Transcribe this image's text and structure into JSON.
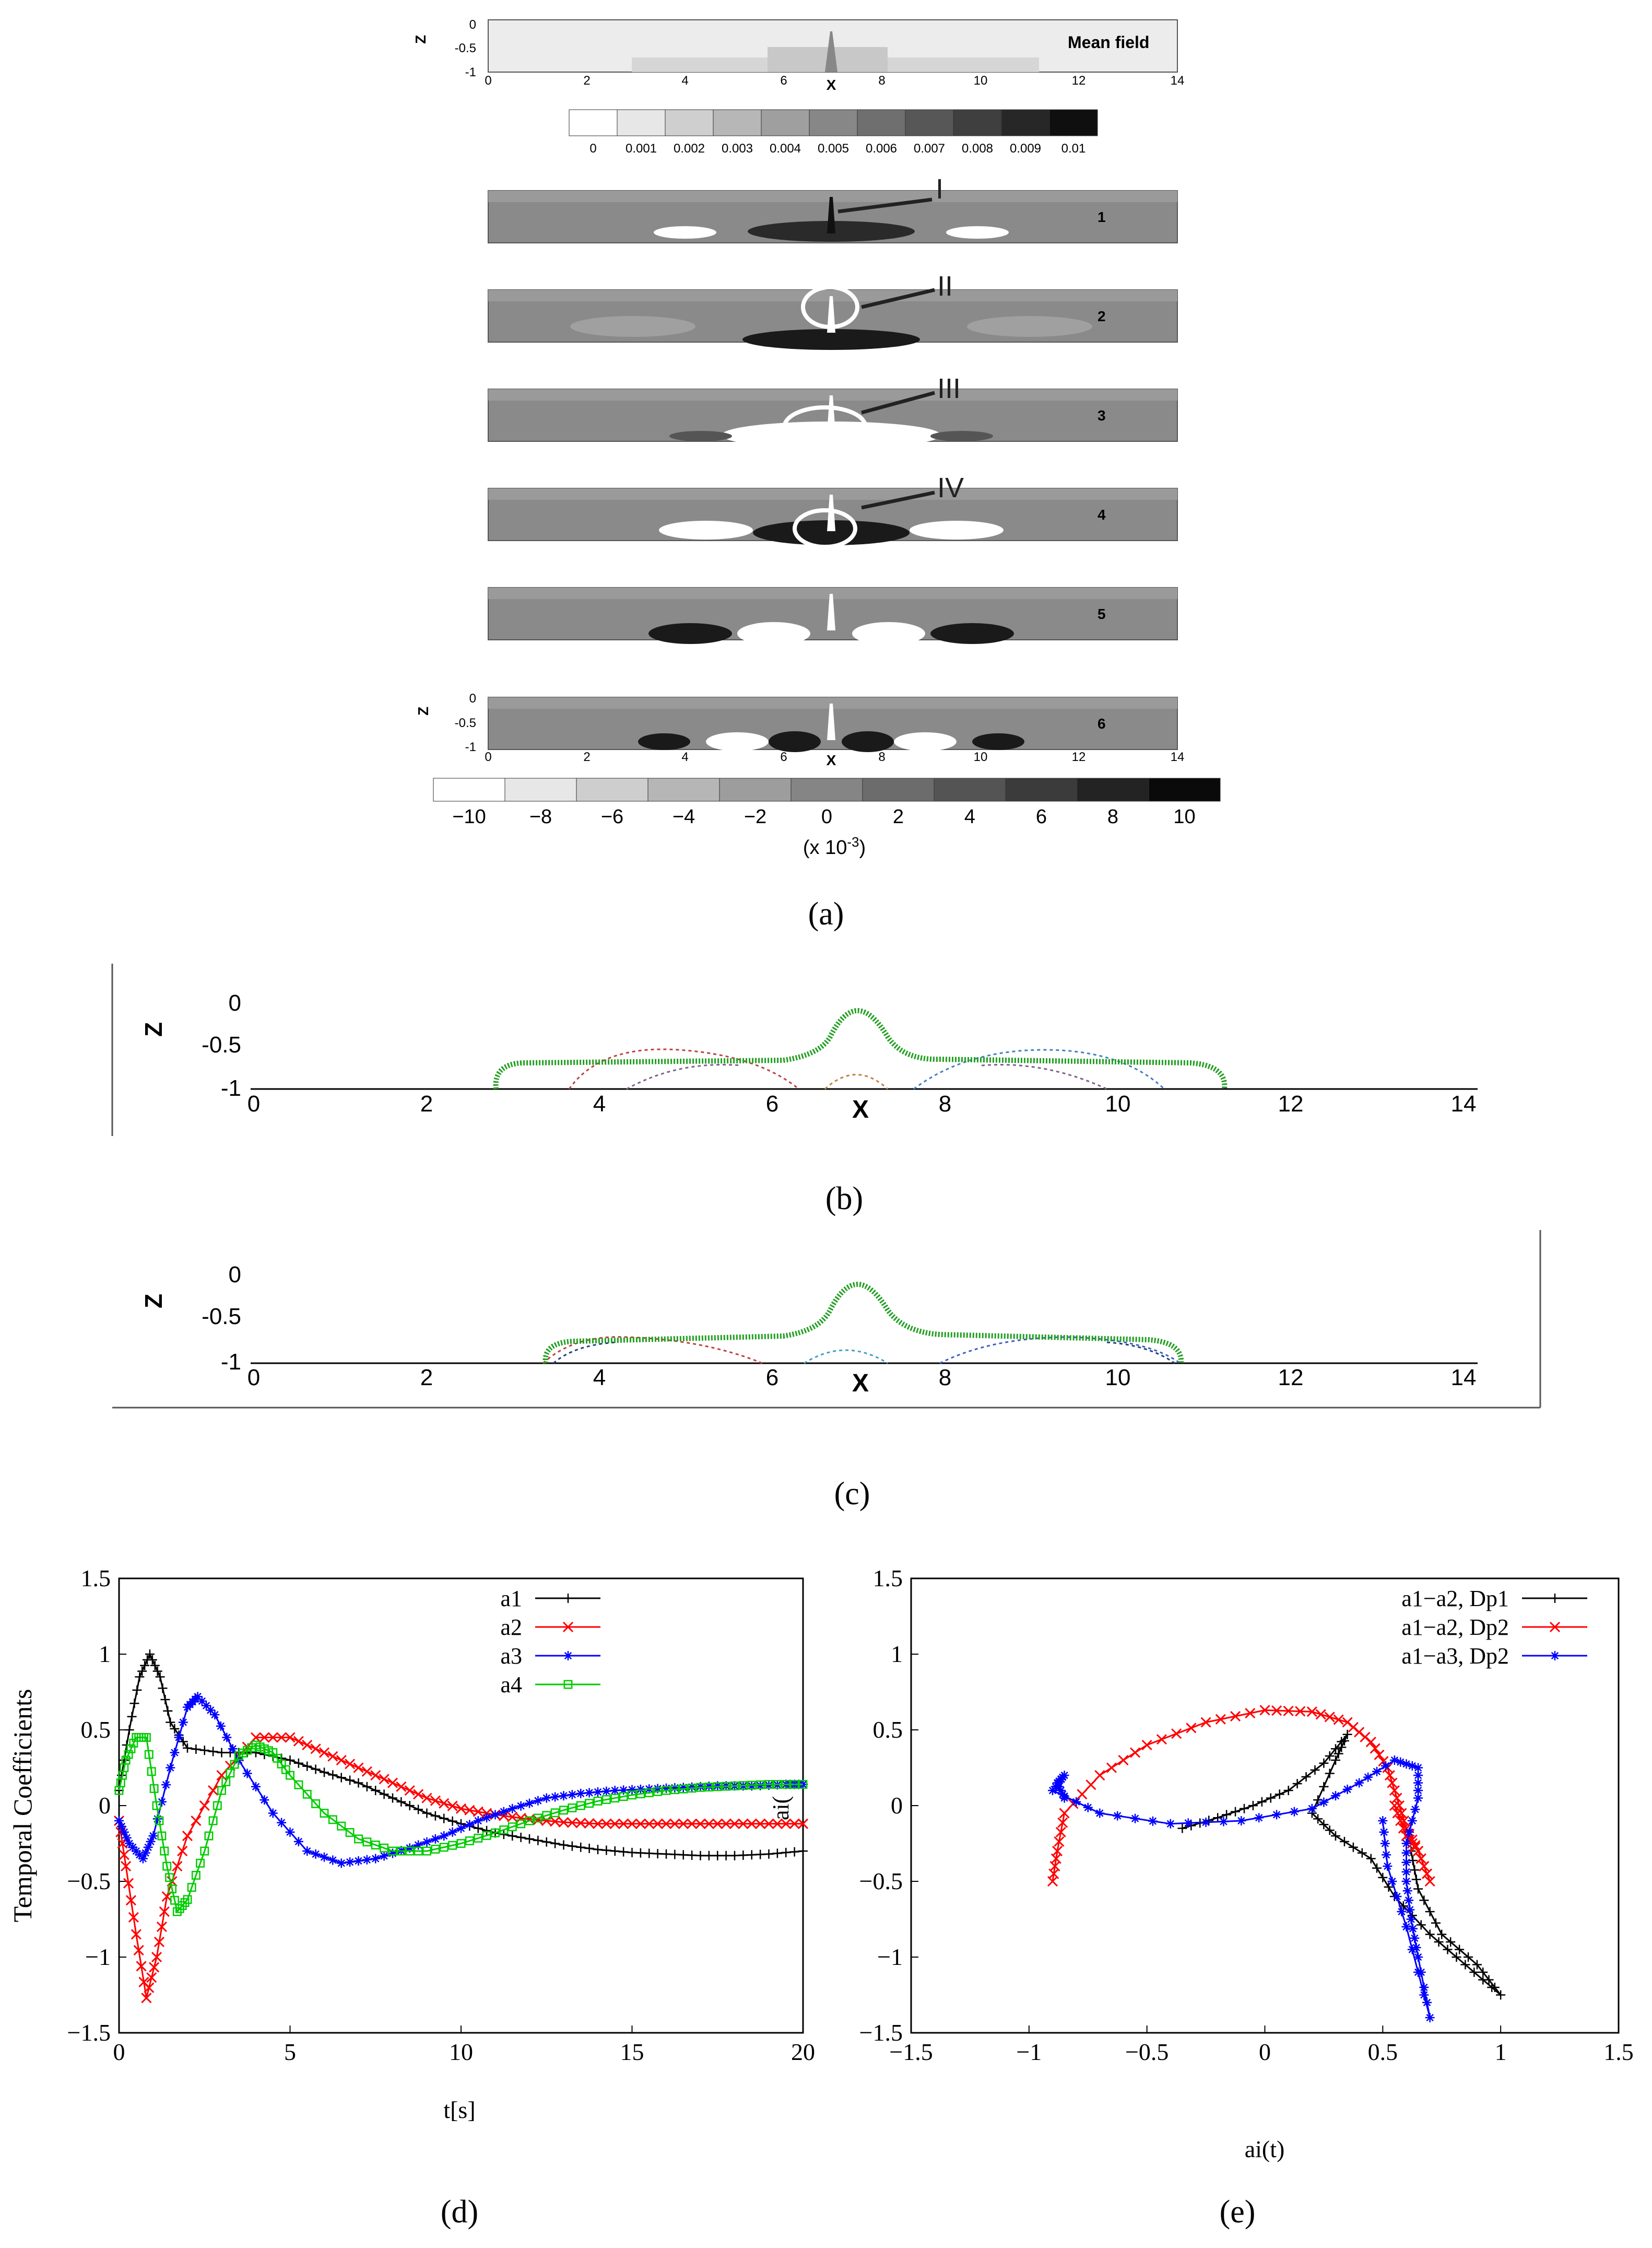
{
  "panel_a": {
    "caption": "(a)",
    "mean_field_label": "Mean field",
    "axis_label_x": "X",
    "axis_label_z": "Z",
    "x_ticks": [
      "0",
      "2",
      "4",
      "6",
      "8",
      "10",
      "12",
      "14"
    ],
    "z_ticks": [
      "0",
      "-0.5",
      "-1"
    ],
    "mean_colorbar_labels": [
      "0",
      "0.001",
      "0.002",
      "0.003",
      "0.004",
      "0.005",
      "0.006",
      "0.007",
      "0.008",
      "0.009",
      "0.01"
    ],
    "mode_numbers": [
      "1",
      "2",
      "3",
      "4",
      "5",
      "6"
    ],
    "annotations": [
      "I",
      "II",
      "III",
      "IV"
    ],
    "mode_colorbar_labels": [
      "−10",
      "−8",
      "−6",
      "−4",
      "−2",
      "0",
      "2",
      "4",
      "6",
      "8",
      "10"
    ],
    "mode_colorbar_unit": "(x 10",
    "mode_colorbar_unit_exp": "-3",
    "mode_colorbar_unit_close": ")"
  },
  "panel_b": {
    "caption": "(b)",
    "axis_label_x": "X",
    "axis_label_z": "Z",
    "x_ticks": [
      "0",
      "2",
      "4",
      "6",
      "8",
      "10",
      "12",
      "14"
    ],
    "z_ticks": [
      "0",
      "-0.5",
      "-1"
    ]
  },
  "panel_c": {
    "caption": "(c)",
    "axis_label_x": "X",
    "axis_label_z": "Z",
    "x_ticks": [
      "0",
      "2",
      "4",
      "6",
      "8",
      "10",
      "12",
      "14"
    ],
    "z_ticks": [
      "0",
      "-0.5",
      "-1"
    ]
  },
  "panel_d": {
    "caption": "(d)",
    "xlabel": "t[s]",
    "ylabel": "Temporal Coefficients",
    "overlay_label": "ai(",
    "x_ticks": [
      "0",
      "5",
      "10",
      "15",
      "20"
    ],
    "y_ticks": [
      "1.5",
      "1",
      "0.5",
      "0",
      "−0.5",
      "−1",
      "−1.5"
    ]
  },
  "panel_e": {
    "caption": "(e)",
    "xlabel": "ai(t)",
    "x_ticks": [
      "−1.5",
      "−1",
      "−0.5",
      "0",
      "0.5",
      "1",
      "1.5"
    ],
    "y_ticks": [
      "1.5",
      "1",
      "0.5",
      "0",
      "−0.5",
      "−1",
      "−1.5"
    ]
  },
  "colors": {
    "black": "#000000",
    "red": "#ff0000",
    "blue": "#0000ff",
    "green": "#00cc00",
    "contour_green": "#22a022",
    "field_gray": "#8a8a8a"
  },
  "chart_data": [
    {
      "type": "line",
      "panel": "d",
      "xlabel": "t[s]",
      "ylabel": "Temporal Coefficients",
      "xlim": [
        0,
        20
      ],
      "ylim": [
        -1.5,
        1.5
      ],
      "legend_position": "top-right",
      "series": [
        {
          "name": "a1",
          "color": "#000000",
          "marker": "plus",
          "points": [
            [
              0,
              0.1
            ],
            [
              0.3,
              0.5
            ],
            [
              0.6,
              0.85
            ],
            [
              0.9,
              1.0
            ],
            [
              1.2,
              0.85
            ],
            [
              1.5,
              0.55
            ],
            [
              2,
              0.38
            ],
            [
              3,
              0.35
            ],
            [
              4,
              0.35
            ],
            [
              5,
              0.3
            ],
            [
              6,
              0.22
            ],
            [
              7,
              0.15
            ],
            [
              8,
              0.05
            ],
            [
              9,
              -0.05
            ],
            [
              10,
              -0.12
            ],
            [
              11,
              -0.18
            ],
            [
              12,
              -0.22
            ],
            [
              13,
              -0.26
            ],
            [
              14,
              -0.29
            ],
            [
              15,
              -0.31
            ],
            [
              16,
              -0.32
            ],
            [
              17,
              -0.33
            ],
            [
              18,
              -0.33
            ],
            [
              19,
              -0.32
            ],
            [
              20,
              -0.3
            ]
          ]
        },
        {
          "name": "a2",
          "color": "#ff0000",
          "marker": "x",
          "points": [
            [
              0,
              -0.1
            ],
            [
              0.2,
              -0.4
            ],
            [
              0.5,
              -0.85
            ],
            [
              0.8,
              -1.27
            ],
            [
              1.1,
              -1.0
            ],
            [
              1.4,
              -0.6
            ],
            [
              2,
              -0.2
            ],
            [
              3,
              0.2
            ],
            [
              4,
              0.45
            ],
            [
              5,
              0.45
            ],
            [
              6,
              0.35
            ],
            [
              7,
              0.25
            ],
            [
              8,
              0.15
            ],
            [
              9,
              0.05
            ],
            [
              10,
              -0.02
            ],
            [
              11,
              -0.06
            ],
            [
              12,
              -0.09
            ],
            [
              13,
              -0.11
            ],
            [
              14,
              -0.12
            ],
            [
              15,
              -0.12
            ],
            [
              16,
              -0.12
            ],
            [
              17,
              -0.12
            ],
            [
              18,
              -0.12
            ],
            [
              19,
              -0.12
            ],
            [
              20,
              -0.12
            ]
          ]
        },
        {
          "name": "a3",
          "color": "#0000ff",
          "marker": "star",
          "points": [
            [
              0,
              -0.1
            ],
            [
              0.3,
              -0.25
            ],
            [
              0.7,
              -0.35
            ],
            [
              1.0,
              -0.2
            ],
            [
              1.5,
              0.25
            ],
            [
              2,
              0.65
            ],
            [
              2.3,
              0.72
            ],
            [
              2.8,
              0.6
            ],
            [
              3.5,
              0.3
            ],
            [
              4.5,
              -0.05
            ],
            [
              5.5,
              -0.3
            ],
            [
              6.5,
              -0.38
            ],
            [
              7.5,
              -0.35
            ],
            [
              8.5,
              -0.28
            ],
            [
              9.5,
              -0.2
            ],
            [
              10.5,
              -0.1
            ],
            [
              11.5,
              -0.02
            ],
            [
              12.5,
              0.05
            ],
            [
              13.5,
              0.08
            ],
            [
              14.5,
              0.1
            ],
            [
              15.5,
              0.11
            ],
            [
              16.5,
              0.12
            ],
            [
              17.5,
              0.13
            ],
            [
              18.5,
              0.13
            ],
            [
              19.5,
              0.14
            ],
            [
              20,
              0.14
            ]
          ]
        },
        {
          "name": "a4",
          "color": "#00cc00",
          "marker": "square",
          "points": [
            [
              0,
              0.1
            ],
            [
              0.2,
              0.3
            ],
            [
              0.5,
              0.45
            ],
            [
              0.8,
              0.45
            ],
            [
              1.1,
              0.0
            ],
            [
              1.4,
              -0.4
            ],
            [
              1.7,
              -0.7
            ],
            [
              2.0,
              -0.62
            ],
            [
              2.5,
              -0.3
            ],
            [
              3,
              0.1
            ],
            [
              3.5,
              0.33
            ],
            [
              4,
              0.4
            ],
            [
              4.5,
              0.35
            ],
            [
              5,
              0.2
            ],
            [
              6,
              -0.05
            ],
            [
              7,
              -0.22
            ],
            [
              8,
              -0.3
            ],
            [
              9,
              -0.3
            ],
            [
              10,
              -0.25
            ],
            [
              11,
              -0.18
            ],
            [
              12,
              -0.1
            ],
            [
              13,
              -0.03
            ],
            [
              14,
              0.03
            ],
            [
              15,
              0.07
            ],
            [
              16,
              0.1
            ],
            [
              17,
              0.12
            ],
            [
              18,
              0.13
            ],
            [
              19,
              0.14
            ],
            [
              20,
              0.14
            ]
          ]
        }
      ]
    },
    {
      "type": "line",
      "panel": "e",
      "xlabel": "ai(t)",
      "ylabel": "",
      "xlim": [
        -1.5,
        1.5
      ],
      "ylim": [
        -1.5,
        1.5
      ],
      "legend_position": "top-right",
      "series": [
        {
          "name": "a1−a2, Dp1",
          "color": "#000000",
          "marker": "plus",
          "points": [
            [
              -0.35,
              -0.15
            ],
            [
              -0.2,
              -0.08
            ],
            [
              -0.05,
              0.0
            ],
            [
              0.1,
              0.1
            ],
            [
              0.25,
              0.28
            ],
            [
              0.35,
              0.47
            ],
            [
              0.3,
              0.3
            ],
            [
              0.2,
              -0.05
            ],
            [
              0.3,
              -0.2
            ],
            [
              0.45,
              -0.35
            ],
            [
              0.55,
              -0.6
            ],
            [
              0.7,
              -0.85
            ],
            [
              0.85,
              -1.05
            ],
            [
              1.0,
              -1.25
            ],
            [
              0.9,
              -1.05
            ],
            [
              0.75,
              -0.85
            ],
            [
              0.65,
              -0.55
            ],
            [
              0.62,
              -0.3
            ]
          ]
        },
        {
          "name": "a1−a2, Dp2",
          "color": "#ff0000",
          "marker": "x",
          "points": [
            [
              -0.9,
              -0.5
            ],
            [
              -0.88,
              -0.3
            ],
            [
              -0.85,
              -0.05
            ],
            [
              -0.7,
              0.2
            ],
            [
              -0.5,
              0.4
            ],
            [
              -0.25,
              0.55
            ],
            [
              0.0,
              0.63
            ],
            [
              0.2,
              0.62
            ],
            [
              0.35,
              0.55
            ],
            [
              0.45,
              0.42
            ],
            [
              0.52,
              0.25
            ],
            [
              0.56,
              0.05
            ],
            [
              0.6,
              -0.15
            ],
            [
              0.65,
              -0.3
            ],
            [
              0.7,
              -0.5
            ],
            [
              0.65,
              -0.3
            ],
            [
              0.6,
              -0.2
            ],
            [
              0.55,
              0.0
            ]
          ]
        },
        {
          "name": "a1−a3, Dp2",
          "color": "#0000ff",
          "marker": "star",
          "points": [
            [
              -0.85,
              0.05
            ],
            [
              -0.88,
              0.15
            ],
            [
              -0.85,
              0.2
            ],
            [
              -0.9,
              0.1
            ],
            [
              -0.7,
              -0.05
            ],
            [
              -0.4,
              -0.12
            ],
            [
              -0.1,
              -0.1
            ],
            [
              0.2,
              -0.02
            ],
            [
              0.4,
              0.15
            ],
            [
              0.55,
              0.3
            ],
            [
              0.65,
              0.25
            ],
            [
              0.65,
              0.05
            ],
            [
              0.6,
              -0.25
            ],
            [
              0.6,
              -0.5
            ],
            [
              0.62,
              -0.75
            ],
            [
              0.65,
              -1.0
            ],
            [
              0.7,
              -1.4
            ],
            [
              0.6,
              -0.8
            ],
            [
              0.52,
              -0.4
            ],
            [
              0.5,
              -0.1
            ]
          ]
        }
      ]
    }
  ]
}
